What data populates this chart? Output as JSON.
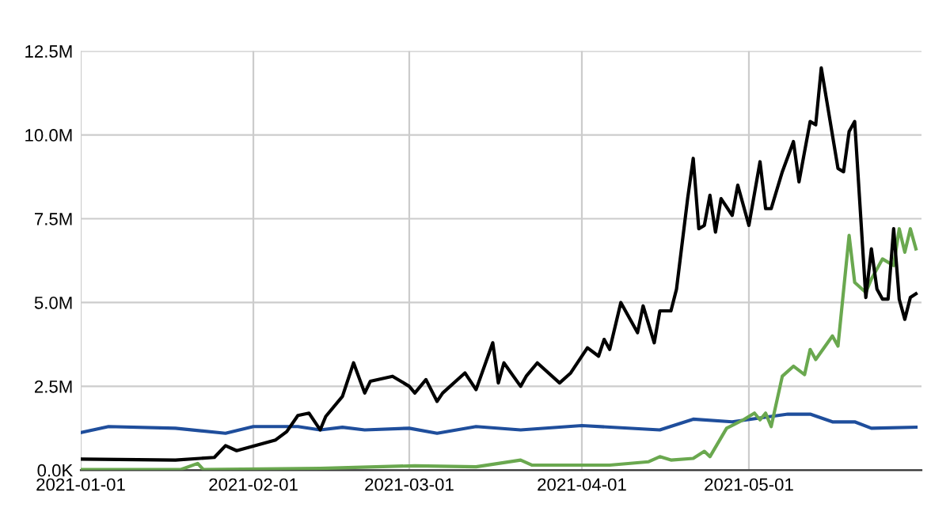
{
  "chart_data": {
    "type": "line",
    "xlim": [
      "2021-01-01",
      "2021-06-01"
    ],
    "xticks": [
      "2021-01-01",
      "2021-02-01",
      "2021-03-01",
      "2021-04-01",
      "2021-05-01"
    ],
    "ylim": [
      0,
      12.5
    ],
    "yticks": [
      {
        "value": 0,
        "label": "0.0K"
      },
      {
        "value": 2.5,
        "label": "2.5M"
      },
      {
        "value": 5,
        "label": "5.0M"
      },
      {
        "value": 7.5,
        "label": "7.5M"
      },
      {
        "value": 10,
        "label": "10.0M"
      },
      {
        "value": 12.5,
        "label": "12.5M"
      }
    ],
    "grid": true,
    "marker": "none",
    "line_style": "solid",
    "series": [
      {
        "color": "#1f4e9c",
        "x": [
          "2021-01-01",
          "2021-01-06",
          "2021-01-18",
          "2021-01-27",
          "2021-02-01",
          "2021-02-09",
          "2021-02-13",
          "2021-02-17",
          "2021-02-21",
          "2021-03-01",
          "2021-03-06",
          "2021-03-13",
          "2021-03-21",
          "2021-04-01",
          "2021-04-15",
          "2021-04-21",
          "2021-04-28",
          "2021-05-08",
          "2021-05-12",
          "2021-05-16",
          "2021-05-20",
          "2021-05-23",
          "2021-05-31"
        ],
        "values": [
          1.12,
          1.3,
          1.25,
          1.1,
          1.3,
          1.3,
          1.2,
          1.28,
          1.2,
          1.25,
          1.1,
          1.3,
          1.2,
          1.33,
          1.2,
          1.52,
          1.44,
          1.67,
          1.67,
          1.44,
          1.44,
          1.25,
          1.28
        ]
      },
      {
        "color": "#6aa84f",
        "x": [
          "2021-01-01",
          "2021-01-19",
          "2021-01-22",
          "2021-01-23",
          "2021-02-13",
          "2021-03-02",
          "2021-03-13",
          "2021-03-21",
          "2021-03-23",
          "2021-04-06",
          "2021-04-13",
          "2021-04-15",
          "2021-04-17",
          "2021-04-21",
          "2021-04-23",
          "2021-04-24",
          "2021-04-27",
          "2021-04-30",
          "2021-05-02",
          "2021-05-03",
          "2021-05-04",
          "2021-05-05",
          "2021-05-07",
          "2021-05-09",
          "2021-05-11",
          "2021-05-12",
          "2021-05-13",
          "2021-05-16",
          "2021-05-17",
          "2021-05-19",
          "2021-05-20",
          "2021-05-22",
          "2021-05-23",
          "2021-05-25",
          "2021-05-27",
          "2021-05-28",
          "2021-05-29",
          "2021-05-30",
          "2021-05-31"
        ],
        "values": [
          0.02,
          0.02,
          0.2,
          0.02,
          0.05,
          0.13,
          0.1,
          0.3,
          0.15,
          0.15,
          0.25,
          0.4,
          0.3,
          0.35,
          0.56,
          0.4,
          1.25,
          1.5,
          1.7,
          1.5,
          1.7,
          1.3,
          2.8,
          3.1,
          2.85,
          3.6,
          3.3,
          4.0,
          3.7,
          7.0,
          5.6,
          5.3,
          5.7,
          6.3,
          6.1,
          7.2,
          6.5,
          7.2,
          6.6
        ]
      },
      {
        "color": "#000000",
        "x": [
          "2021-01-01",
          "2021-01-18",
          "2021-01-25",
          "2021-01-27",
          "2021-01-29",
          "2021-02-05",
          "2021-02-07",
          "2021-02-09",
          "2021-02-11",
          "2021-02-13",
          "2021-02-14",
          "2021-02-17",
          "2021-02-19",
          "2021-02-21",
          "2021-02-22",
          "2021-02-26",
          "2021-03-01",
          "2021-03-02",
          "2021-03-04",
          "2021-03-06",
          "2021-03-07",
          "2021-03-11",
          "2021-03-13",
          "2021-03-16",
          "2021-03-17",
          "2021-03-18",
          "2021-03-21",
          "2021-03-22",
          "2021-03-24",
          "2021-03-28",
          "2021-03-30",
          "2021-04-02",
          "2021-04-04",
          "2021-04-05",
          "2021-04-06",
          "2021-04-08",
          "2021-04-11",
          "2021-04-12",
          "2021-04-14",
          "2021-04-15",
          "2021-04-17",
          "2021-04-18",
          "2021-04-20",
          "2021-04-21",
          "2021-04-22",
          "2021-04-23",
          "2021-04-24",
          "2021-04-25",
          "2021-04-26",
          "2021-04-28",
          "2021-04-29",
          "2021-05-01",
          "2021-05-03",
          "2021-05-04",
          "2021-05-05",
          "2021-05-07",
          "2021-05-09",
          "2021-05-10",
          "2021-05-12",
          "2021-05-13",
          "2021-05-14",
          "2021-05-17",
          "2021-05-18",
          "2021-05-19",
          "2021-05-20",
          "2021-05-22",
          "2021-05-23",
          "2021-05-24",
          "2021-05-25",
          "2021-05-26",
          "2021-05-27",
          "2021-05-28",
          "2021-05-29",
          "2021-05-30",
          "2021-05-31"
        ],
        "values": [
          0.33,
          0.3,
          0.38,
          0.73,
          0.58,
          0.9,
          1.15,
          1.63,
          1.7,
          1.2,
          1.6,
          2.2,
          3.2,
          2.3,
          2.65,
          2.8,
          2.5,
          2.3,
          2.7,
          2.05,
          2.3,
          2.9,
          2.4,
          3.8,
          2.6,
          3.2,
          2.5,
          2.8,
          3.2,
          2.6,
          2.9,
          3.65,
          3.4,
          3.9,
          3.6,
          5.0,
          4.1,
          4.9,
          3.8,
          4.75,
          4.75,
          5.4,
          8.1,
          9.3,
          7.2,
          7.3,
          8.2,
          7.1,
          8.1,
          7.6,
          8.5,
          7.3,
          9.2,
          7.8,
          7.8,
          8.9,
          9.8,
          8.6,
          10.4,
          10.3,
          12.0,
          9.0,
          8.9,
          10.1,
          10.4,
          5.15,
          6.6,
          5.4,
          5.1,
          5.1,
          7.2,
          5.1,
          4.5,
          5.15,
          5.26
        ]
      }
    ]
  }
}
